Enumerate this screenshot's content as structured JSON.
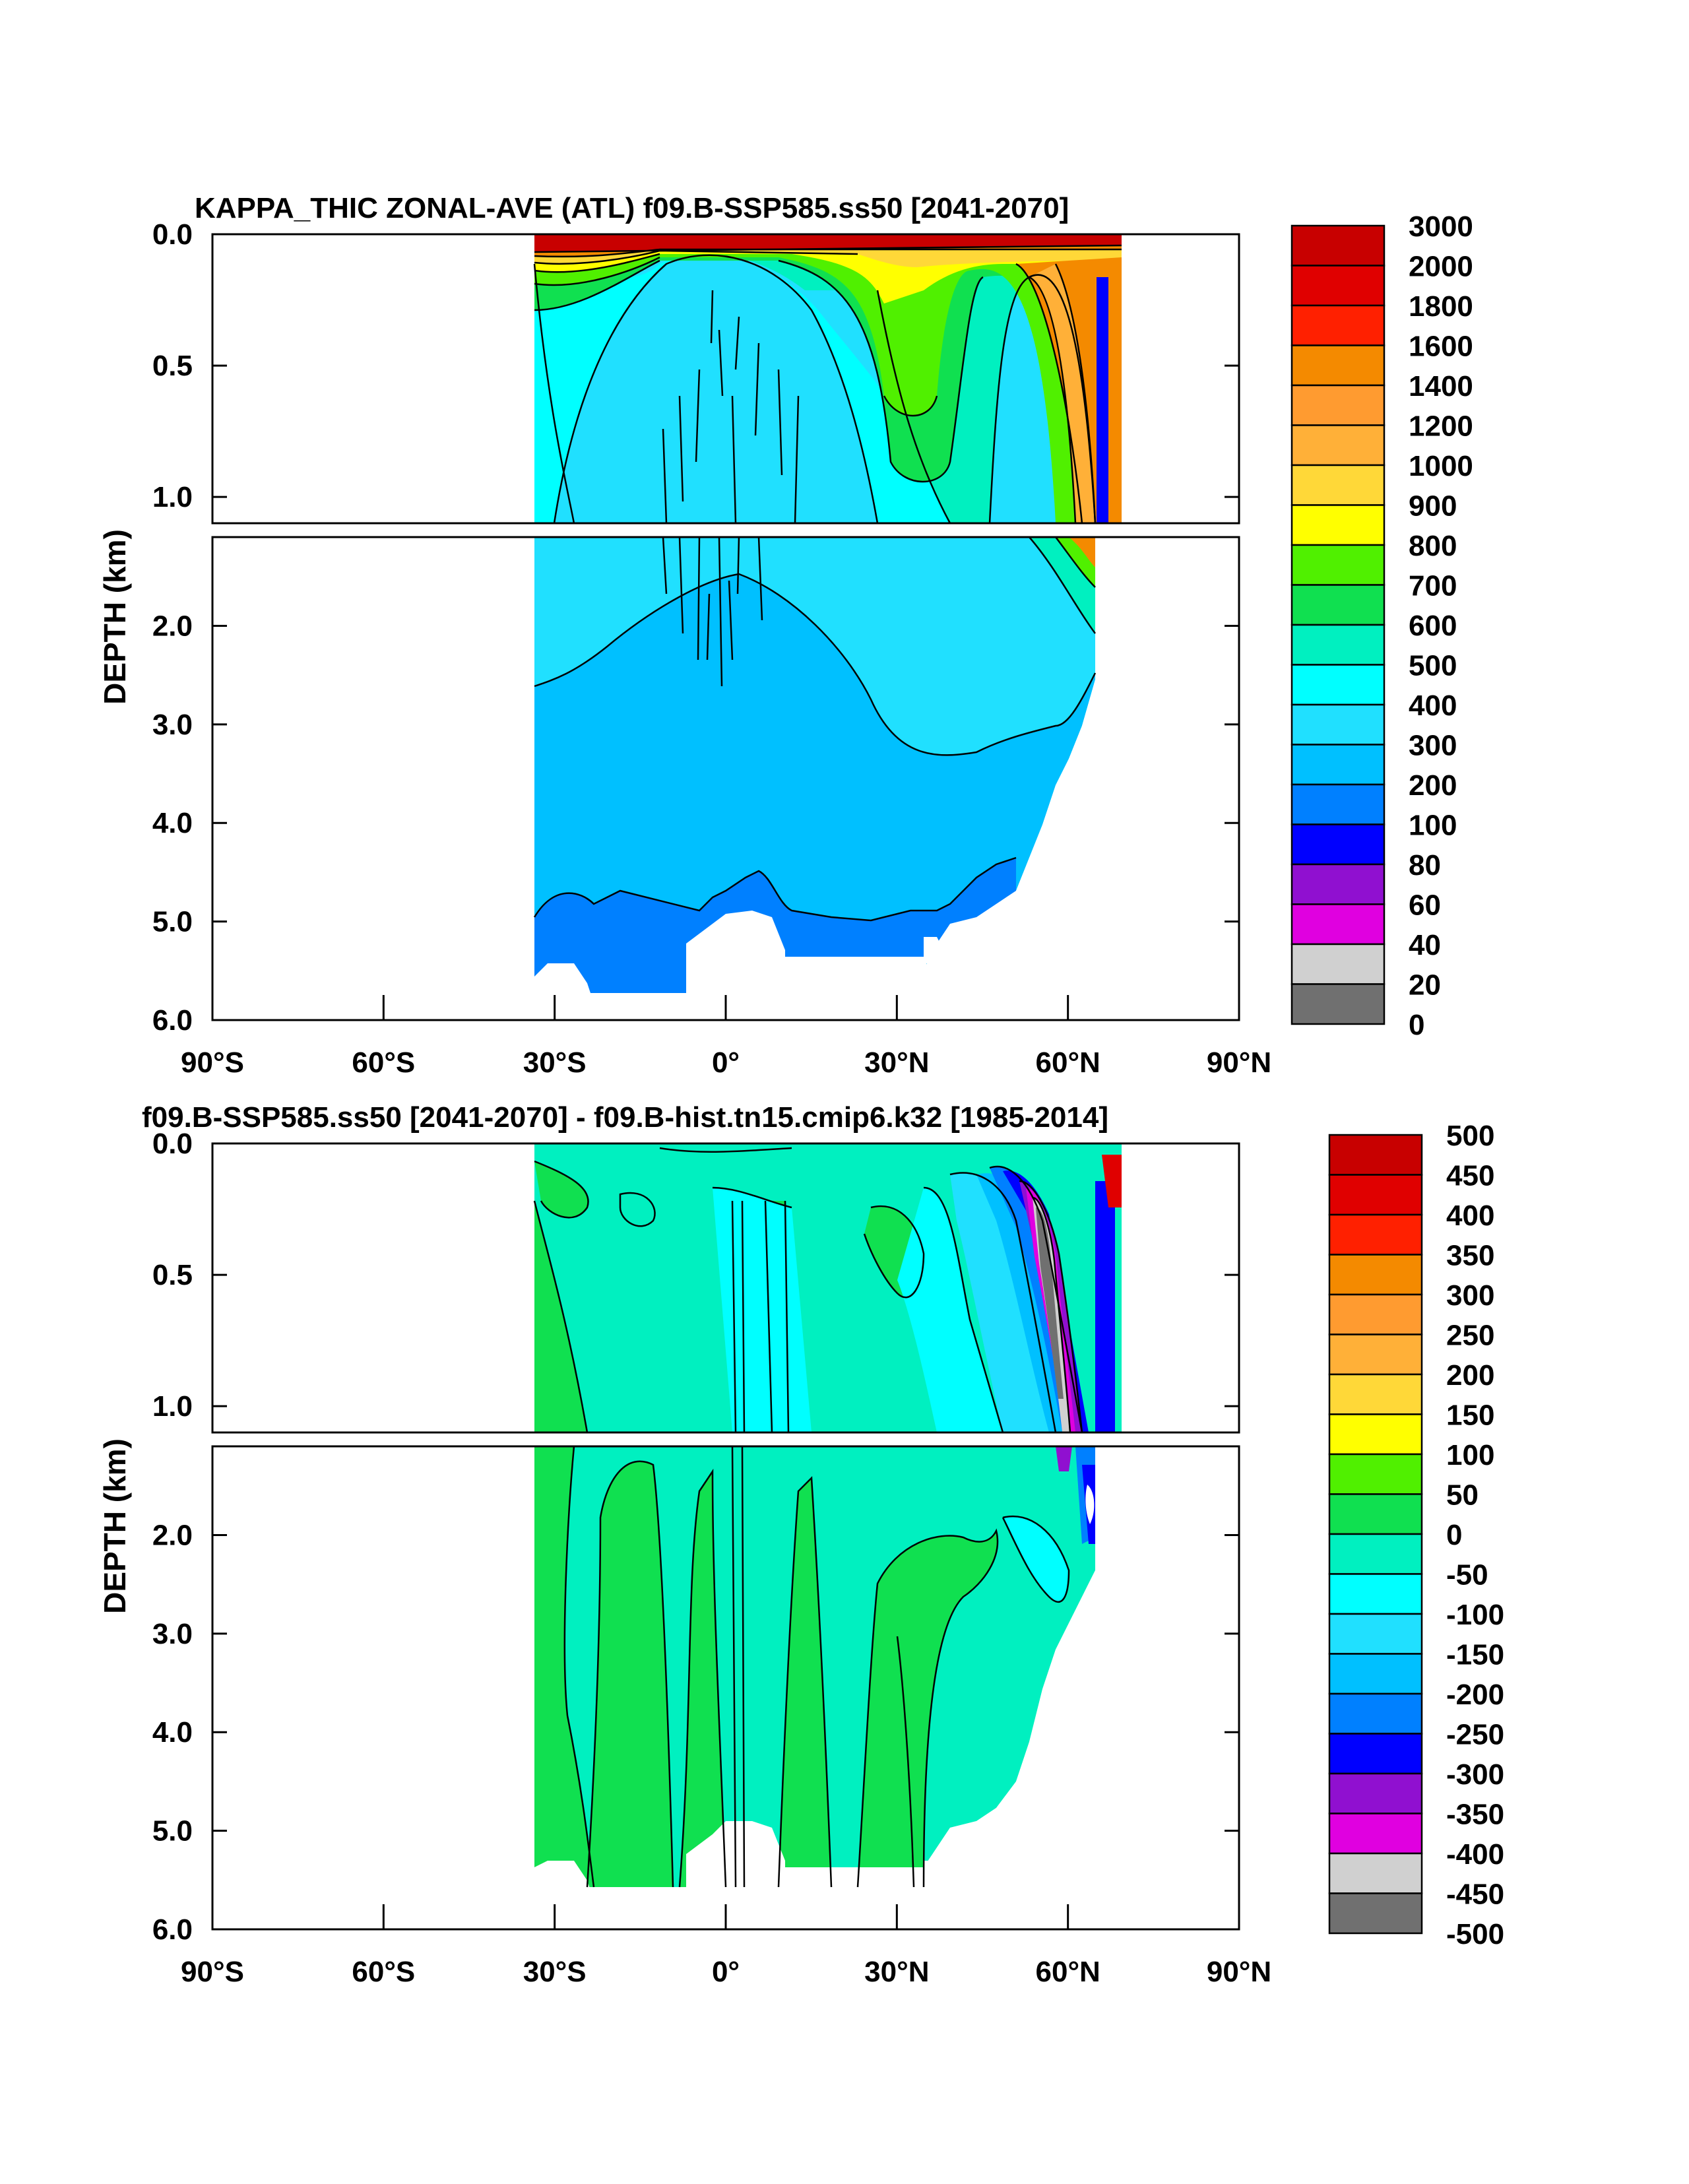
{
  "chart_data": [
    {
      "type": "heatmap",
      "panel": "top",
      "title": "KAPPA_THIC ZONAL-AVE (ATL) f09.B-SSP585.ss50 [2041-2070]",
      "ylabel": "DEPTH (km)",
      "xlim": [
        -90,
        90
      ],
      "upper_ylim": [
        0.0,
        1.1
      ],
      "lower_ylim": [
        1.1,
        6.0
      ],
      "x_ticks": [
        {
          "value": -90,
          "label": "90°S"
        },
        {
          "value": -60,
          "label": "60°S"
        },
        {
          "value": -30,
          "label": "30°S"
        },
        {
          "value": 0,
          "label": "0°"
        },
        {
          "value": 30,
          "label": "30°N"
        },
        {
          "value": 60,
          "label": "60°N"
        },
        {
          "value": 90,
          "label": "90°N"
        }
      ],
      "upper_y_ticks": [
        {
          "value": 0.0,
          "label": "0.0"
        },
        {
          "value": 0.5,
          "label": "0.5"
        },
        {
          "value": 1.0,
          "label": "1.0"
        }
      ],
      "lower_y_ticks": [
        {
          "value": 2.0,
          "label": "2.0"
        },
        {
          "value": 3.0,
          "label": "3.0"
        },
        {
          "value": 4.0,
          "label": "4.0"
        },
        {
          "value": 5.0,
          "label": "5.0"
        },
        {
          "value": 6.0,
          "label": "6.0"
        }
      ],
      "colorbar_labels": [
        "3000",
        "2000",
        "1800",
        "1600",
        "1400",
        "1200",
        "1000",
        "900",
        "800",
        "700",
        "600",
        "500",
        "400",
        "300",
        "200",
        "100",
        "80",
        "60",
        "40",
        "20",
        "0"
      ],
      "colorbar_colors": [
        "#c80000",
        "#e00000",
        "#ff2000",
        "#f48a00",
        "#ff9b30",
        "#ffb038",
        "#ffd838",
        "#ffff00",
        "#50f000",
        "#10e050",
        "#00f0c0",
        "#00ffff",
        "#20e0ff",
        "#00c0ff",
        "#0080ff",
        "#0000ff",
        "#9010d0",
        "#e000e0",
        "#d0d0d0",
        "#707070"
      ],
      "data_extent_x": [
        -34,
        68
      ],
      "ocean_floor_km": 5.4
    },
    {
      "type": "heatmap",
      "panel": "bottom",
      "title": "f09.B-SSP585.ss50 [2041-2070] - f09.B-hist.tn15.cmip6.k32 [1985-2014]",
      "ylabel": "DEPTH (km)",
      "xlim": [
        -90,
        90
      ],
      "upper_ylim": [
        0.0,
        1.1
      ],
      "lower_ylim": [
        1.1,
        6.0
      ],
      "x_ticks": [
        {
          "value": -90,
          "label": "90°S"
        },
        {
          "value": -60,
          "label": "60°S"
        },
        {
          "value": -30,
          "label": "30°S"
        },
        {
          "value": 0,
          "label": "0°"
        },
        {
          "value": 30,
          "label": "30°N"
        },
        {
          "value": 60,
          "label": "60°N"
        },
        {
          "value": 90,
          "label": "90°N"
        }
      ],
      "upper_y_ticks": [
        {
          "value": 0.0,
          "label": "0.0"
        },
        {
          "value": 0.5,
          "label": "0.5"
        },
        {
          "value": 1.0,
          "label": "1.0"
        }
      ],
      "lower_y_ticks": [
        {
          "value": 2.0,
          "label": "2.0"
        },
        {
          "value": 3.0,
          "label": "3.0"
        },
        {
          "value": 4.0,
          "label": "4.0"
        },
        {
          "value": 5.0,
          "label": "5.0"
        },
        {
          "value": 6.0,
          "label": "6.0"
        }
      ],
      "colorbar_labels": [
        "500",
        "450",
        "400",
        "350",
        "300",
        "250",
        "200",
        "150",
        "100",
        "50",
        "0",
        "-50",
        "-100",
        "-150",
        "-200",
        "-250",
        "-300",
        "-350",
        "-400",
        "-450",
        "-500"
      ],
      "colorbar_colors": [
        "#c80000",
        "#e00000",
        "#ff2000",
        "#f48a00",
        "#ff9b30",
        "#ffb038",
        "#ffd838",
        "#ffff00",
        "#50f000",
        "#10e050",
        "#00f0c0",
        "#00ffff",
        "#20e0ff",
        "#00c0ff",
        "#0080ff",
        "#0000ff",
        "#9010d0",
        "#e000e0",
        "#d0d0d0",
        "#707070"
      ],
      "data_extent_x": [
        -34,
        68
      ],
      "ocean_floor_km": 5.4
    }
  ]
}
